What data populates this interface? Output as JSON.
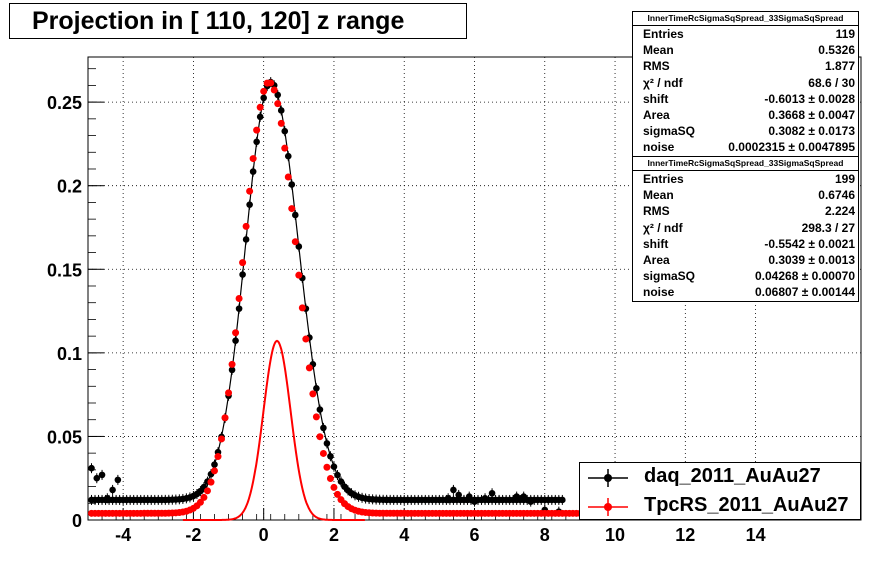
{
  "chart_data": {
    "type": "scatter",
    "title": "Projection in [ 110, 120] z range",
    "xlabel": "",
    "ylabel": "",
    "xlim": [
      -5,
      17
    ],
    "ylim": [
      0,
      0.277
    ],
    "grid": true,
    "x_ticks": [
      "-4",
      "-2",
      "0",
      "2",
      "4",
      "6",
      "8",
      "10",
      "12",
      "14"
    ],
    "x_tick_values": [
      -4,
      -2,
      0,
      2,
      4,
      6,
      8,
      10,
      12,
      14
    ],
    "y_ticks": [
      "0",
      "0.05",
      "0.1",
      "0.15",
      "0.2",
      "0.25"
    ],
    "y_tick_values": [
      0,
      0.05,
      0.1,
      0.15,
      0.2,
      0.25
    ],
    "legend_position": "bottom-right",
    "series": [
      {
        "name": "daq_2011_AuAu27",
        "color": "#000000",
        "fit_mean": -0.6013,
        "fit_area": 0.3668,
        "fit_sigmaSQ": 0.3082,
        "fit_noise": 0.0002315,
        "extra_points": [
          [
            -4.9,
            0.031
          ],
          [
            -4.75,
            0.025
          ],
          [
            -4.6,
            0.027
          ],
          [
            -4.45,
            0.013
          ],
          [
            -4.3,
            0.018
          ],
          [
            -4.15,
            0.024
          ],
          [
            5.25,
            0.013
          ],
          [
            5.4,
            0.018
          ],
          [
            5.55,
            0.015
          ],
          [
            5.7,
            0.012
          ],
          [
            5.85,
            0.014
          ],
          [
            6.0,
            0.011
          ],
          [
            6.3,
            0.013
          ],
          [
            6.5,
            0.016
          ],
          [
            6.7,
            0.012
          ],
          [
            7.2,
            0.014
          ],
          [
            7.4,
            0.014
          ],
          [
            7.6,
            0.011
          ],
          [
            8.0,
            0.006
          ],
          [
            8.4,
            0.005
          ]
        ]
      },
      {
        "name": "TpcRS_2011_AuAu27",
        "color": "#ff0000",
        "fit_mean": -0.5542,
        "fit_area": 0.3039,
        "fit_sigmaSQ": 0.04268,
        "fit_noise": 0.06807,
        "extra_points": []
      }
    ]
  },
  "stats_boxes": [
    {
      "header": "InnerTimeRcSigmaSqSpread_33SigmaSqSpread",
      "rows": [
        {
          "label": "Entries",
          "value": "119"
        },
        {
          "label": "Mean",
          "value": "0.5326"
        },
        {
          "label": "RMS",
          "value": "1.877"
        },
        {
          "label": "χ² / ndf",
          "value": "68.6 / 30"
        },
        {
          "label": "shift",
          "value": "-0.6013 ± 0.0028"
        },
        {
          "label": "Area",
          "value": "0.3668 ± 0.0047"
        },
        {
          "label": "sigmaSQ",
          "value": "0.3082 ± 0.0173"
        },
        {
          "label": "noise",
          "value": "0.0002315 ± 0.0047895"
        }
      ]
    },
    {
      "header": "InnerTimeRcSigmaSqSpread_33SigmaSqSpread",
      "rows": [
        {
          "label": "Entries",
          "value": "199"
        },
        {
          "label": "Mean",
          "value": "0.6746"
        },
        {
          "label": "RMS",
          "value": "2.224"
        },
        {
          "label": "χ² / ndf",
          "value": "298.3 / 27"
        },
        {
          "label": "shift",
          "value": "-0.5542 ± 0.0021"
        },
        {
          "label": "Area",
          "value": "0.3039 ± 0.0013"
        },
        {
          "label": "sigmaSQ",
          "value": "0.04268 ± 0.00070"
        },
        {
          "label": "noise",
          "value": "0.06807 ± 0.00144"
        }
      ]
    }
  ]
}
